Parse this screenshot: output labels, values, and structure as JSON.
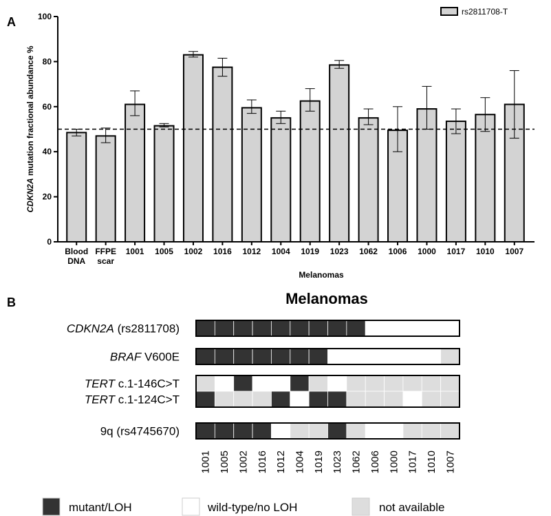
{
  "panel_a_letter": "A",
  "panel_b_letter": "B",
  "chart_data": [
    {
      "type": "bar",
      "ylabel_italic": "CDKN2A",
      "ylabel_rest": " mutation fractional abundance %",
      "xlabel": "Melanomas",
      "ylim": [
        0,
        100
      ],
      "yticks": [
        0,
        20,
        40,
        60,
        80,
        100
      ],
      "reference_line": 50,
      "categories": [
        [
          "Blood",
          "DNA"
        ],
        [
          "FFPE",
          "scar"
        ],
        [
          "1001"
        ],
        [
          "1005"
        ],
        [
          "1002"
        ],
        [
          "1016"
        ],
        [
          "1012"
        ],
        [
          "1004"
        ],
        [
          "1019"
        ],
        [
          "1023"
        ],
        [
          "1062"
        ],
        [
          "1006"
        ],
        [
          "1000"
        ],
        [
          "1017"
        ],
        [
          "1010"
        ],
        [
          "1007"
        ]
      ],
      "series": [
        {
          "name": "rs2811708-T",
          "color": "#d3d3d3",
          "values": [
            48.5,
            47,
            61,
            51.5,
            83,
            77.5,
            59.5,
            55,
            62.5,
            78.5,
            55,
            49.5,
            59,
            53.5,
            56.5,
            61
          ],
          "error_low": [
            47,
            44,
            56,
            51,
            82,
            73.5,
            57,
            52.5,
            58,
            77,
            52,
            40,
            50,
            48,
            49,
            46
          ],
          "error_high": [
            50,
            50.5,
            67,
            52.5,
            84.5,
            81.5,
            63,
            58,
            68,
            80.5,
            59,
            60,
            69,
            59,
            64,
            76
          ]
        }
      ]
    },
    {
      "type": "heatmap",
      "title": "Melanomas",
      "columns": [
        "1001",
        "1005",
        "1002",
        "1016",
        "1012",
        "1004",
        "1019",
        "1023",
        "1062",
        "1006",
        "1000",
        "1017",
        "1010",
        "1007"
      ],
      "rows": [
        {
          "italic": "CDKN2A",
          "rest": " (rs2811708)",
          "values": [
            "m",
            "m",
            "m",
            "m",
            "m",
            "m",
            "m",
            "m",
            "m",
            "w",
            "w",
            "w",
            "w",
            "w"
          ]
        },
        {
          "italic": "BRAF",
          "rest": " V600E",
          "values": [
            "m",
            "m",
            "m",
            "m",
            "m",
            "m",
            "m",
            "w",
            "w",
            "w",
            "w",
            "w",
            "w",
            "n"
          ]
        },
        {
          "italic": "TERT",
          "rest": " c.1-146C>T",
          "values": [
            "n",
            "w",
            "m",
            "w",
            "w",
            "m",
            "n",
            "w",
            "n",
            "n",
            "n",
            "n",
            "n",
            "n"
          ]
        },
        {
          "italic": "TERT",
          "rest": " c.1-124C>T",
          "values": [
            "m",
            "n",
            "n",
            "n",
            "m",
            "w",
            "m",
            "m",
            "n",
            "n",
            "n",
            "w",
            "n",
            "n"
          ]
        },
        {
          "italic": "",
          "rest": "9q (rs4745670)",
          "values": [
            "m",
            "m",
            "m",
            "m",
            "w",
            "n",
            "n",
            "m",
            "n",
            "w",
            "w",
            "n",
            "n",
            "n"
          ]
        }
      ],
      "state_colors": {
        "m": "#333333",
        "w": "#ffffff",
        "n": "#dddddd"
      },
      "legend": [
        {
          "key": "m",
          "label": "mutant/LOH"
        },
        {
          "key": "w",
          "label": "wild-type/no LOH"
        },
        {
          "key": "n",
          "label": "not available"
        }
      ]
    }
  ]
}
